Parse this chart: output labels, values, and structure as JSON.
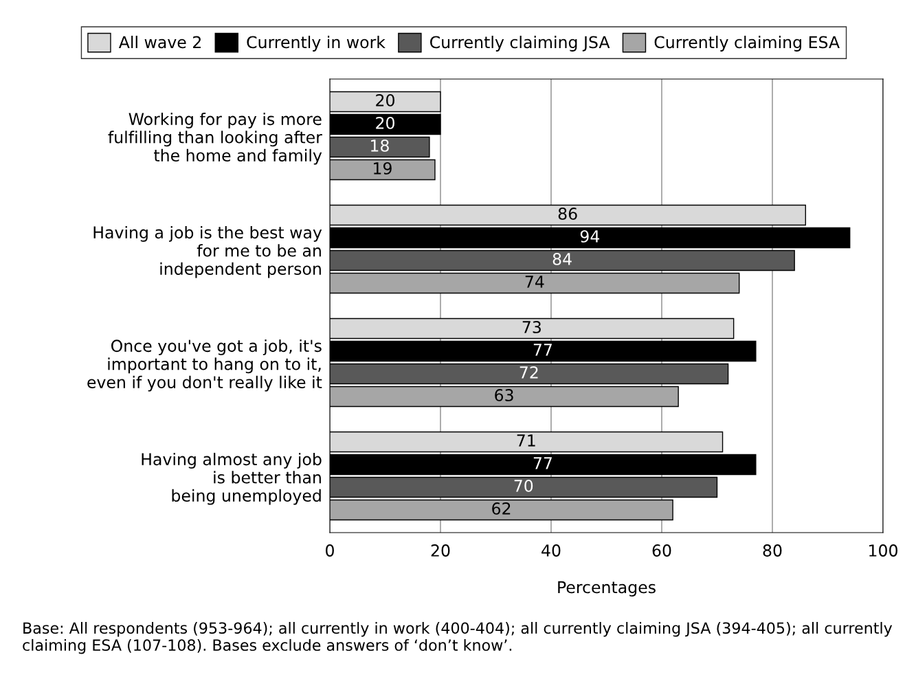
{
  "chart_data": {
    "type": "bar",
    "orientation": "horizontal",
    "categories": [
      "Working for pay is more\nfulfilling than looking after\nthe home and family",
      "Having a job is the best way\nfor me to be an\nindependent person",
      "Once you've got a job, it's\nimportant to hang on to it,\neven if you don't really like it",
      "Having almost any job\nis better than\nbeing unemployed"
    ],
    "series": [
      {
        "name": "All wave 2",
        "color": "#d9d9d9",
        "values": [
          20,
          86,
          73,
          71
        ]
      },
      {
        "name": "Currently in work",
        "color": "#000000",
        "values": [
          20,
          94,
          77,
          77
        ]
      },
      {
        "name": "Currently claiming JSA",
        "color": "#595959",
        "values": [
          18,
          84,
          72,
          70
        ]
      },
      {
        "name": "Currently claiming ESA",
        "color": "#a6a6a6",
        "values": [
          19,
          74,
          63,
          62
        ]
      }
    ],
    "xlabel": "Percentages",
    "xlim": [
      0,
      100
    ],
    "xticks": [
      0,
      20,
      40,
      60,
      80,
      100
    ],
    "grid": "x",
    "legend": "top",
    "data_labels": true,
    "annotations": [
      "Base: All respondents (953-964); all currently in work (400-404); all currently claiming JSA (394-405); all currently claiming ESA (107-108). Bases exclude answers of ‘don’t know’."
    ]
  }
}
